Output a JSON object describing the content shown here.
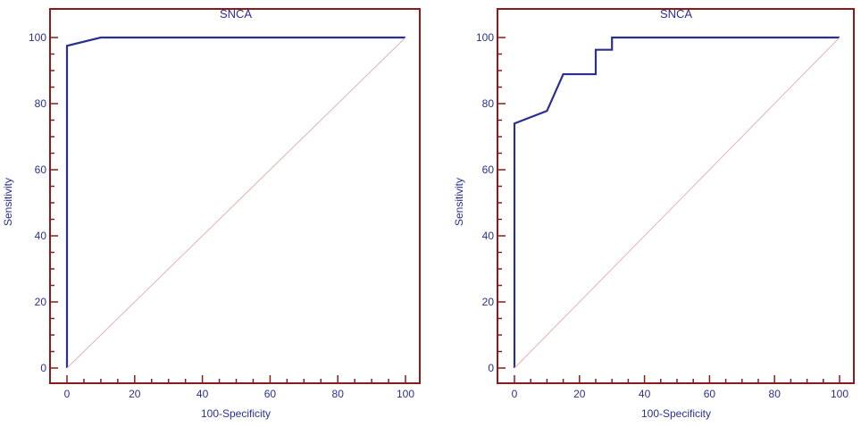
{
  "colors": {
    "frame": "#8b1a1a",
    "curve": "#2b2f8f",
    "diagonal": "#e3b3b3",
    "text": "#2b2f8f"
  },
  "chart_data": [
    {
      "type": "line",
      "title": "SNCA",
      "xlabel": "100-Specificity",
      "ylabel": "Sensitivity",
      "xlim": [
        0,
        100
      ],
      "ylim": [
        0,
        100
      ],
      "xticks": [
        "0",
        "20",
        "40",
        "60",
        "80",
        "100"
      ],
      "yticks": [
        "0",
        "20",
        "40",
        "60",
        "80",
        "100"
      ],
      "grid": false,
      "series": [
        {
          "role": "roc-curve",
          "x": [
            0,
            0,
            10,
            100
          ],
          "y": [
            0,
            97.5,
            100,
            100
          ]
        },
        {
          "role": "reference-diagonal",
          "x": [
            0,
            100
          ],
          "y": [
            0,
            100
          ]
        }
      ]
    },
    {
      "type": "line",
      "title": "SNCA",
      "xlabel": "100-Specificity",
      "ylabel": "Sensitivity",
      "xlim": [
        0,
        100
      ],
      "ylim": [
        0,
        100
      ],
      "xticks": [
        "0",
        "20",
        "40",
        "60",
        "80",
        "100"
      ],
      "yticks": [
        "0",
        "20",
        "40",
        "60",
        "80",
        "100"
      ],
      "grid": false,
      "series": [
        {
          "role": "roc-curve",
          "x": [
            0,
            0,
            10,
            15,
            25,
            25,
            30,
            30,
            100
          ],
          "y": [
            0,
            74,
            77.8,
            88.9,
            88.9,
            96.3,
            96.3,
            100,
            100
          ]
        },
        {
          "role": "reference-diagonal",
          "x": [
            0,
            100
          ],
          "y": [
            0,
            100
          ]
        }
      ]
    }
  ]
}
